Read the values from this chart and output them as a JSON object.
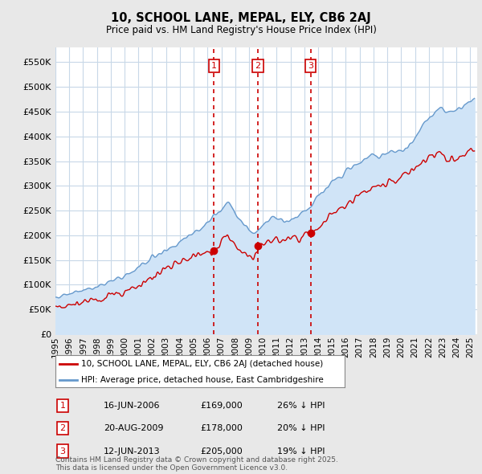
{
  "title": "10, SCHOOL LANE, MEPAL, ELY, CB6 2AJ",
  "subtitle": "Price paid vs. HM Land Registry's House Price Index (HPI)",
  "red_label": "10, SCHOOL LANE, MEPAL, ELY, CB6 2AJ (detached house)",
  "blue_label": "HPI: Average price, detached house, East Cambridgeshire",
  "sale_points": [
    {
      "num": 1,
      "date": "16-JUN-2006",
      "price": 169000,
      "pct": "26%",
      "x_year": 2006.46
    },
    {
      "num": 2,
      "date": "20-AUG-2009",
      "price": 178000,
      "pct": "20%",
      "x_year": 2009.63
    },
    {
      "num": 3,
      "date": "12-JUN-2013",
      "price": 205000,
      "pct": "19%",
      "x_year": 2013.46
    }
  ],
  "vline_color": "#cc0000",
  "footnote": "Contains HM Land Registry data © Crown copyright and database right 2025.\nThis data is licensed under the Open Government Licence v3.0.",
  "ylim": [
    0,
    580000
  ],
  "xlim_start": 1995.0,
  "xlim_end": 2025.5,
  "yticks": [
    0,
    50000,
    100000,
    150000,
    200000,
    250000,
    300000,
    350000,
    400000,
    450000,
    500000,
    550000
  ],
  "ytick_labels": [
    "£0",
    "£50K",
    "£100K",
    "£150K",
    "£200K",
    "£250K",
    "£300K",
    "£350K",
    "£400K",
    "£450K",
    "£500K",
    "£550K"
  ],
  "background_color": "#e8e8e8",
  "plot_bg_color": "#ffffff",
  "grid_color": "#c8d8e8",
  "red_color": "#cc0000",
  "blue_color": "#6699cc",
  "blue_fill_color": "#d0e4f7"
}
